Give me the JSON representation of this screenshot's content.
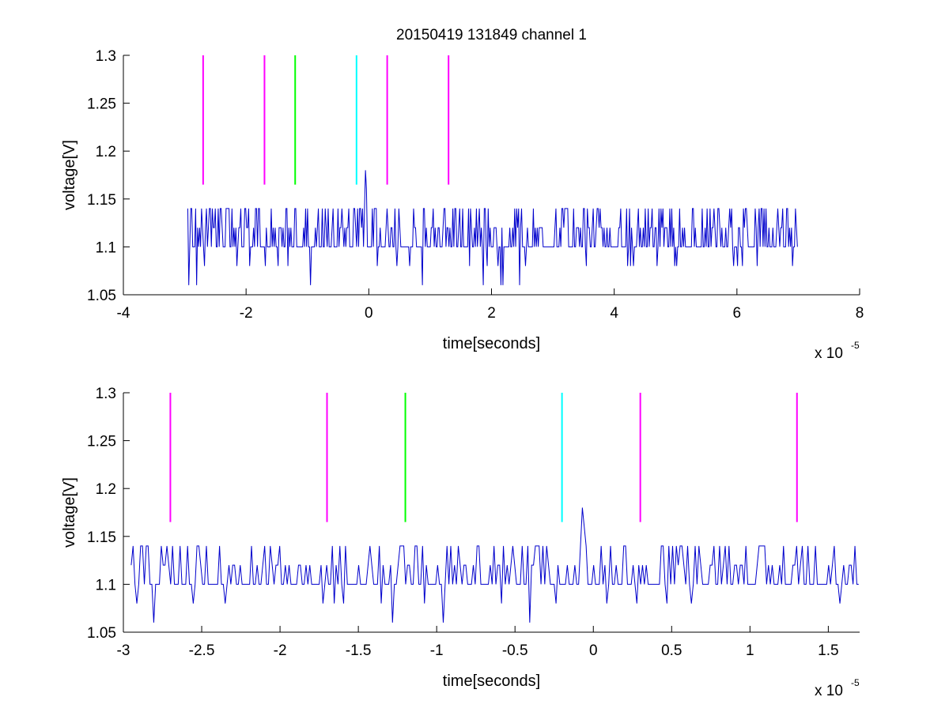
{
  "chart_data": [
    {
      "type": "line",
      "title": "20150419 131849 channel 1",
      "xlabel": "time[seconds]",
      "ylabel": "voltage[V]",
      "x_exponent_base": "x 10",
      "x_exponent": "-5",
      "xlim": [
        -4,
        8
      ],
      "ylim": [
        1.05,
        1.3
      ],
      "xticks": [
        "-4",
        "-2",
        "0",
        "2",
        "4",
        "6",
        "8"
      ],
      "yticks": [
        "1.05",
        "1.1",
        "1.15",
        "1.2",
        "1.25",
        "1.3"
      ],
      "grid": false,
      "markers": [
        {
          "x": -2.7,
          "ymin": 1.165,
          "ymax": 1.3,
          "color": "#ff00ff"
        },
        {
          "x": -1.7,
          "ymin": 1.165,
          "ymax": 1.3,
          "color": "#ff00ff"
        },
        {
          "x": -1.2,
          "ymin": 1.165,
          "ymax": 1.3,
          "color": "#00ff00"
        },
        {
          "x": -0.2,
          "ymin": 1.165,
          "ymax": 1.3,
          "color": "#00ffff"
        },
        {
          "x": 0.3,
          "ymin": 1.165,
          "ymax": 1.3,
          "color": "#ff00ff"
        },
        {
          "x": 1.3,
          "ymin": 1.165,
          "ymax": 1.3,
          "color": "#ff00ff"
        }
      ],
      "series": [
        {
          "x_start": -2.95,
          "x_end": 7.0,
          "baseline": 1.1,
          "levels": [
            1.06,
            1.08,
            1.1,
            1.12,
            1.14
          ],
          "peak": {
            "x": -0.05,
            "y": 1.18
          },
          "color": "#0000cc"
        }
      ]
    },
    {
      "type": "line",
      "title": "",
      "xlabel": "time[seconds]",
      "ylabel": "voltage[V]",
      "x_exponent_base": "x 10",
      "x_exponent": "-5",
      "xlim": [
        -3,
        1.7
      ],
      "ylim": [
        1.05,
        1.3
      ],
      "xticks": [
        "-3",
        "-2.5",
        "-2",
        "-1.5",
        "-1",
        "-0.5",
        "0",
        "0.5",
        "1",
        "1.5"
      ],
      "yticks": [
        "1.05",
        "1.1",
        "1.15",
        "1.2",
        "1.25",
        "1.3"
      ],
      "grid": false,
      "markers": [
        {
          "x": -2.7,
          "ymin": 1.165,
          "ymax": 1.3,
          "color": "#ff00ff"
        },
        {
          "x": -1.7,
          "ymin": 1.165,
          "ymax": 1.3,
          "color": "#ff00ff"
        },
        {
          "x": -1.2,
          "ymin": 1.165,
          "ymax": 1.3,
          "color": "#00ff00"
        },
        {
          "x": -0.2,
          "ymin": 1.165,
          "ymax": 1.3,
          "color": "#00ffff"
        },
        {
          "x": 0.3,
          "ymin": 1.165,
          "ymax": 1.3,
          "color": "#ff00ff"
        },
        {
          "x": 1.3,
          "ymin": 1.165,
          "ymax": 1.3,
          "color": "#ff00ff"
        }
      ],
      "series": [
        {
          "x_start": -2.95,
          "x_end": 1.7,
          "baseline": 1.1,
          "levels": [
            1.06,
            1.08,
            1.1,
            1.12,
            1.14
          ],
          "peak": {
            "x": -0.07,
            "y": 1.18
          },
          "color": "#0000cc"
        }
      ]
    }
  ]
}
